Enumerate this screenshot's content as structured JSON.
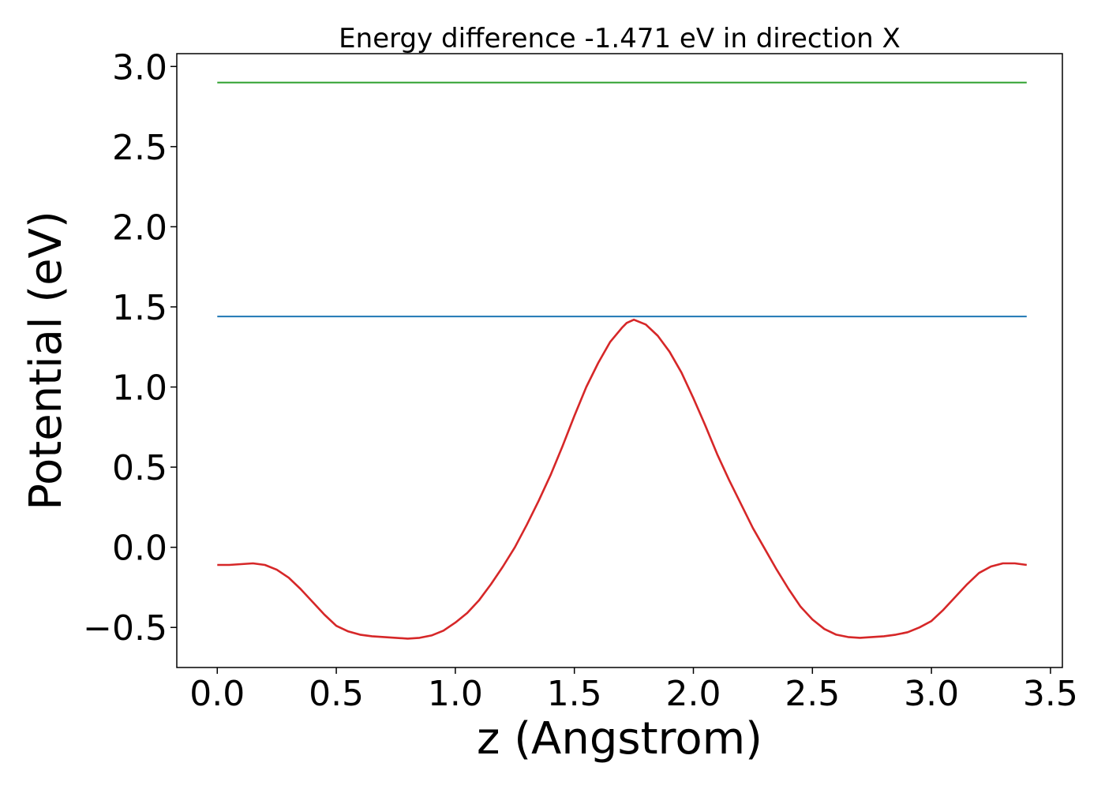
{
  "chart_data": {
    "type": "line",
    "title": "Energy difference -1.471 eV in direction X",
    "xlabel": "z (Angstrom)",
    "ylabel": "Potential (eV)",
    "xlim": [
      -0.17,
      3.55
    ],
    "ylim": [
      -0.75,
      3.08
    ],
    "xticks": [
      0.0,
      0.5,
      1.0,
      1.5,
      2.0,
      2.5,
      3.0,
      3.5
    ],
    "xtick_labels": [
      "0.0",
      "0.5",
      "1.0",
      "1.5",
      "2.0",
      "2.5",
      "3.0",
      "3.5"
    ],
    "yticks": [
      -0.5,
      0.0,
      0.5,
      1.0,
      1.5,
      2.0,
      2.5,
      3.0
    ],
    "ytick_labels": [
      "−0.5",
      "0.0",
      "0.5",
      "1.0",
      "1.5",
      "2.0",
      "2.5",
      "3.0"
    ],
    "grid": false,
    "series": [
      {
        "color": "#2ca02c",
        "x": [
          0.0,
          3.4
        ],
        "y": [
          2.9,
          2.9
        ]
      },
      {
        "color": "#1f77b4",
        "x": [
          0.0,
          3.4
        ],
        "y": [
          1.44,
          1.44
        ]
      },
      {
        "color": "#d62728",
        "x": [
          0.0,
          0.05,
          0.1,
          0.15,
          0.2,
          0.25,
          0.3,
          0.35,
          0.4,
          0.45,
          0.5,
          0.55,
          0.6,
          0.65,
          0.7,
          0.75,
          0.8,
          0.85,
          0.9,
          0.95,
          1.0,
          1.05,
          1.1,
          1.15,
          1.2,
          1.25,
          1.3,
          1.35,
          1.4,
          1.45,
          1.5,
          1.55,
          1.6,
          1.65,
          1.7,
          1.72,
          1.75,
          1.8,
          1.85,
          1.9,
          1.95,
          2.0,
          2.05,
          2.1,
          2.15,
          2.2,
          2.25,
          2.3,
          2.35,
          2.4,
          2.45,
          2.5,
          2.55,
          2.6,
          2.65,
          2.7,
          2.75,
          2.8,
          2.85,
          2.9,
          2.95,
          3.0,
          3.05,
          3.1,
          3.15,
          3.2,
          3.25,
          3.3,
          3.35,
          3.4
        ],
        "y": [
          -0.11,
          -0.11,
          -0.105,
          -0.1,
          -0.11,
          -0.14,
          -0.19,
          -0.26,
          -0.34,
          -0.42,
          -0.49,
          -0.525,
          -0.545,
          -0.555,
          -0.56,
          -0.565,
          -0.57,
          -0.565,
          -0.55,
          -0.52,
          -0.47,
          -0.41,
          -0.33,
          -0.23,
          -0.12,
          0.0,
          0.14,
          0.29,
          0.45,
          0.63,
          0.82,
          1.0,
          1.15,
          1.28,
          1.37,
          1.4,
          1.42,
          1.39,
          1.32,
          1.22,
          1.09,
          0.93,
          0.76,
          0.58,
          0.42,
          0.27,
          0.12,
          -0.01,
          -0.14,
          -0.26,
          -0.37,
          -0.45,
          -0.51,
          -0.545,
          -0.56,
          -0.565,
          -0.56,
          -0.555,
          -0.545,
          -0.53,
          -0.5,
          -0.46,
          -0.39,
          -0.31,
          -0.23,
          -0.16,
          -0.12,
          -0.1,
          -0.1,
          -0.11
        ]
      }
    ]
  }
}
